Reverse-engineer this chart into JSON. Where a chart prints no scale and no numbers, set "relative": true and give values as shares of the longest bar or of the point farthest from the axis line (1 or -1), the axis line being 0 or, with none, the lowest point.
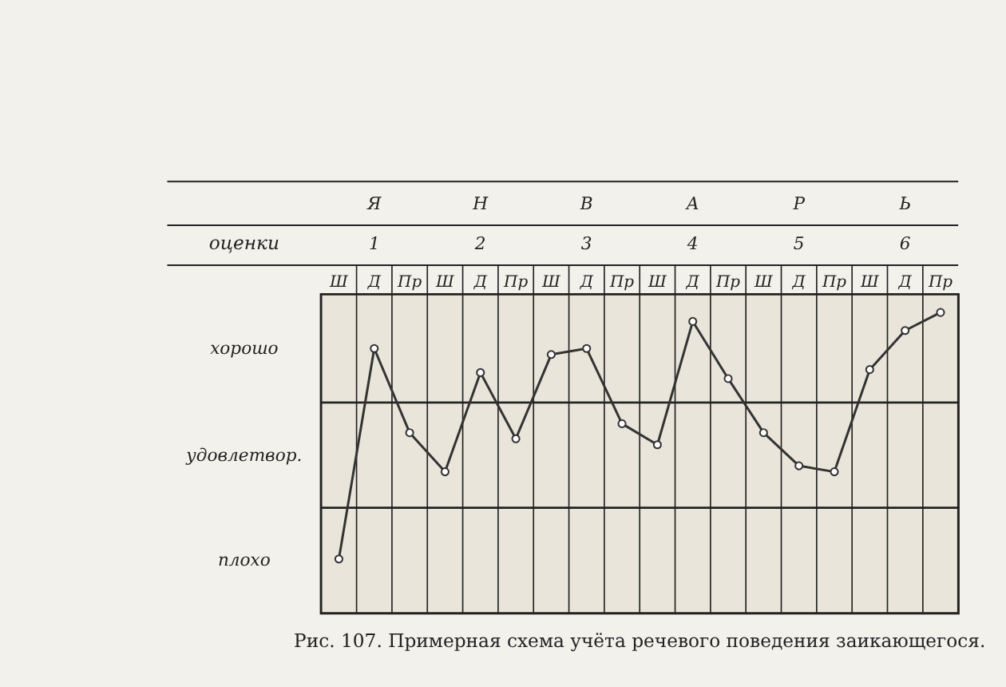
{
  "chart_data": {
    "type": "line",
    "relative": true,
    "title": "Рис. 107. Примерная схема учёта речевого поведения заикающегося.",
    "ylabel": "оценки",
    "xlabel": "Я Н В А Р Ь",
    "annotations": [
      "1",
      "2",
      "3",
      "4",
      "5",
      "6"
    ],
    "categories": [
      "Ш",
      "Д",
      "Пр",
      "Ш",
      "Д",
      "Пр",
      "Ш",
      "Д",
      "Пр",
      "Ш",
      "Д",
      "Пр",
      "Ш",
      "Д",
      "Пр",
      "Ш",
      "Д",
      "Пр"
    ],
    "series": [
      {
        "color": "#333333",
        "values": [
          0.18,
          0.88,
          0.6,
          0.47,
          0.8,
          0.58,
          0.86,
          0.88,
          0.63,
          0.56,
          0.97,
          0.78,
          0.6,
          0.49,
          0.47,
          0.81,
          0.94,
          1.0
        ]
      }
    ],
    "bands": [
      {
        "axis": "y",
        "from": 0.7,
        "to": 1.06,
        "label": "хорошо",
        "color": "#e9e5da"
      },
      {
        "axis": "y",
        "from": 0.35,
        "to": 0.7,
        "label": "удовлетвор.",
        "color": "#e9e5da"
      },
      {
        "axis": "y",
        "from": 0,
        "to": 0.35,
        "label": "плохо",
        "color": "#e9e5da"
      }
    ],
    "grid": "x",
    "marker": "circle",
    "line_style": "solid"
  }
}
